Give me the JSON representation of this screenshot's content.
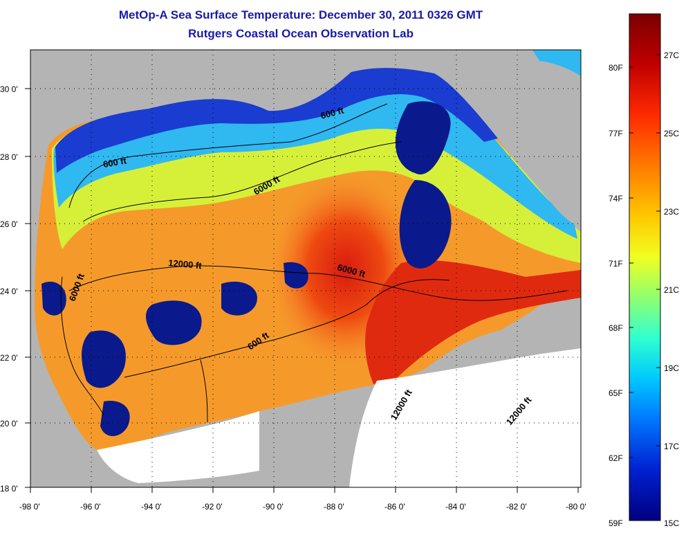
{
  "title": {
    "line1": "MetOp-A Sea Surface Temperature:  December 30, 2011 0326 GMT",
    "line2": "Rutgers Coastal Ocean Observation Lab"
  },
  "map": {
    "lon_range": [
      -98,
      -80
    ],
    "lat_range": [
      18,
      31
    ],
    "lon_ticks": [
      "-98 0'",
      "-96 0'",
      "-94 0'",
      "-92 0'",
      "-90 0'",
      "-88 0'",
      "-86 0'",
      "-84 0'",
      "-82 0'",
      "-80 0'"
    ],
    "lat_ticks": [
      "18 0'",
      "20 0'",
      "22 0'",
      "24 0'",
      "26 0'",
      "28 0'",
      "30 0'"
    ],
    "contour_labels": [
      {
        "text": "600 ft"
      },
      {
        "text": "600 ft"
      },
      {
        "text": "6000 ft"
      },
      {
        "text": "12000 ft"
      },
      {
        "text": "6000 ft"
      },
      {
        "text": "6000 ft"
      },
      {
        "text": "600 ft"
      },
      {
        "text": "12000 ft"
      },
      {
        "text": "12000 ft"
      }
    ],
    "colors": {
      "land": "#b4b4b4",
      "no_data": "#ffffff",
      "cloud": "#0a1a8c"
    }
  },
  "colorbar": {
    "fahrenheit": [
      "80F",
      "77F",
      "74F",
      "71F",
      "68F",
      "65F",
      "62F",
      "59F"
    ],
    "celsius": [
      "27C",
      "25C",
      "23C",
      "21C",
      "19C",
      "17C",
      "15C"
    ],
    "colors": [
      "#7a0000",
      "#d40000",
      "#ff4000",
      "#ff9000",
      "#ffd800",
      "#c8ff40",
      "#60ffa0",
      "#00e0ff",
      "#0090ff",
      "#0030e0",
      "#000090"
    ]
  }
}
